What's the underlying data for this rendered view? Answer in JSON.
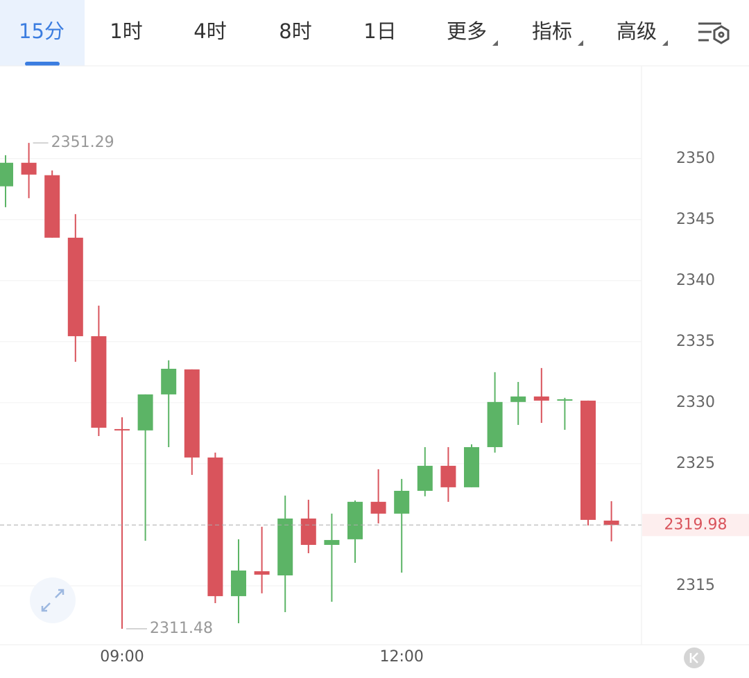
{
  "toolbar": {
    "tabs": [
      "15分",
      "1时",
      "4时",
      "8时",
      "1日",
      "更多",
      "指标",
      "高级"
    ],
    "active": 0
  },
  "chart_data": {
    "type": "candlestick",
    "categories": [
      null,
      null,
      null,
      null,
      null,
      "09:00",
      null,
      null,
      null,
      null,
      null,
      null,
      null,
      null,
      null,
      null,
      null,
      "12:00",
      null,
      null,
      null,
      null,
      null,
      null,
      null,
      null,
      null
    ],
    "open": [
      2347.73,
      2349.66,
      2348.64,
      2343.52,
      2335.45,
      2327.84,
      2327.73,
      2330.68,
      2332.73,
      2325.51,
      2314.15,
      2316.19,
      2315.85,
      2320.51,
      2318.35,
      2318.81,
      2321.88,
      2320.91,
      2322.78,
      2324.83,
      2323.07,
      2326.36,
      2330.06,
      2330.51,
      2330.23,
      2330.17,
      2320.34
    ],
    "high": [
      2350.28,
      2351.29,
      2349.03,
      2345.45,
      2337.95,
      2328.81,
      2330.68,
      2333.47,
      2332.73,
      2325.91,
      2318.81,
      2319.83,
      2322.39,
      2322.05,
      2320.91,
      2321.99,
      2324.55,
      2323.75,
      2326.36,
      2326.36,
      2326.59,
      2332.5,
      2331.7,
      2332.84,
      2330.4,
      2330.17,
      2321.93
    ],
    "low": [
      2346.02,
      2346.76,
      2343.52,
      2333.35,
      2327.27,
      2311.48,
      2318.69,
      2326.36,
      2324.09,
      2313.58,
      2311.93,
      2314.38,
      2312.84,
      2317.67,
      2313.69,
      2316.88,
      2320.11,
      2316.08,
      2322.33,
      2321.88,
      2323.07,
      2325.91,
      2328.18,
      2328.35,
      2327.78,
      2319.94,
      2318.64
    ],
    "close": [
      2349.66,
      2348.69,
      2343.52,
      2335.45,
      2327.95,
      2327.73,
      2330.68,
      2332.78,
      2325.51,
      2314.15,
      2316.25,
      2315.91,
      2320.51,
      2318.35,
      2318.75,
      2321.88,
      2320.91,
      2322.78,
      2324.83,
      2323.07,
      2326.36,
      2330.06,
      2330.51,
      2330.17,
      2330.28,
      2320.4,
      2319.98
    ],
    "up_color": "#5cb466",
    "down_color": "#d9545c",
    "ylim": [
      2310.17,
      2357.6
    ],
    "yticks": [
      2315,
      2325,
      2330,
      2335,
      2340,
      2345,
      2350
    ],
    "grid": true
  }
}
